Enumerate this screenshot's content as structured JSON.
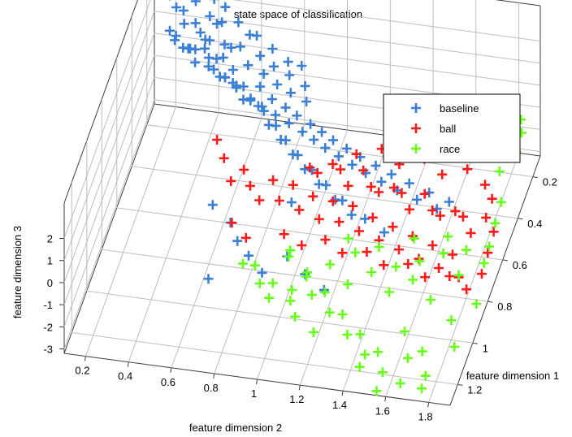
{
  "chart_data": {
    "type": "scatter",
    "projection": "3d",
    "title": "state space of classification",
    "xlabel": "feature dimension 2",
    "ylabel": "feature dimension 1",
    "zlabel": "feature dimension 3",
    "xticks": [
      "0.2",
      "0.4",
      "0.6",
      "0.8",
      "1",
      "1.2",
      "1.4",
      "1.6",
      "1.8"
    ],
    "yticks": [
      "0.2",
      "0.4",
      "0.6",
      "0.8",
      "1",
      "1.2"
    ],
    "zticks": [
      "2",
      "1",
      "0",
      "-1",
      "-2",
      "-3"
    ],
    "xlim": [
      0.1,
      1.9
    ],
    "ylim": [
      0.1,
      1.3
    ],
    "zlim": [
      -3.2,
      3.6
    ],
    "grid": true,
    "legend_position": "top-right",
    "marker": "+",
    "series": [
      {
        "name": "baseline",
        "color": "#3a7fd5",
        "points": [
          [
            0.27,
            0.14,
            3.5
          ],
          [
            0.48,
            0.24,
            3.0
          ],
          [
            0.4,
            0.16,
            2.5
          ],
          [
            0.18,
            0.12,
            2.0
          ],
          [
            0.22,
            0.15,
            1.8
          ],
          [
            0.25,
            0.14,
            1.6
          ],
          [
            0.3,
            0.12,
            1.9
          ],
          [
            0.32,
            0.18,
            1.5
          ],
          [
            0.35,
            0.2,
            1.3
          ],
          [
            0.38,
            0.16,
            1.7
          ],
          [
            0.4,
            0.22,
            1.2
          ],
          [
            0.42,
            0.18,
            1.6
          ],
          [
            0.45,
            0.2,
            1.9
          ],
          [
            0.48,
            0.25,
            1.4
          ],
          [
            0.5,
            0.22,
            1.0
          ],
          [
            0.52,
            0.18,
            1.8
          ],
          [
            0.55,
            0.24,
            1.3
          ],
          [
            0.58,
            0.2,
            1.5
          ],
          [
            0.6,
            0.28,
            0.9
          ],
          [
            0.62,
            0.22,
            1.7
          ],
          [
            0.65,
            0.26,
            1.2
          ],
          [
            0.68,
            0.3,
            0.8
          ],
          [
            0.7,
            0.24,
            1.4
          ],
          [
            0.72,
            0.28,
            1.0
          ],
          [
            0.75,
            0.32,
            0.6
          ],
          [
            0.78,
            0.26,
            1.1
          ],
          [
            0.8,
            0.3,
            0.9
          ],
          [
            0.82,
            0.34,
            0.5
          ],
          [
            0.85,
            0.28,
            1.2
          ],
          [
            0.88,
            0.32,
            0.7
          ],
          [
            0.9,
            0.36,
            0.4
          ],
          [
            0.2,
            0.18,
            1.0
          ],
          [
            0.23,
            0.2,
            0.8
          ],
          [
            0.26,
            0.16,
            1.2
          ],
          [
            0.3,
            0.22,
            0.7
          ],
          [
            0.34,
            0.24,
            0.9
          ],
          [
            0.37,
            0.2,
            0.6
          ],
          [
            0.41,
            0.26,
            0.8
          ],
          [
            0.44,
            0.28,
            0.5
          ],
          [
            0.47,
            0.24,
            0.7
          ],
          [
            0.5,
            0.3,
            0.4
          ],
          [
            0.53,
            0.28,
            0.6
          ],
          [
            0.56,
            0.32,
            0.3
          ],
          [
            0.6,
            0.34,
            0.5
          ],
          [
            0.64,
            0.36,
            0.2
          ],
          [
            0.67,
            0.32,
            0.4
          ],
          [
            0.7,
            0.38,
            0.1
          ],
          [
            0.74,
            0.36,
            0.3
          ],
          [
            0.77,
            0.4,
            0.0
          ],
          [
            0.81,
            0.38,
            0.2
          ],
          [
            0.84,
            0.42,
            -0.1
          ],
          [
            0.87,
            0.4,
            0.1
          ],
          [
            0.91,
            0.44,
            -0.2
          ],
          [
            0.94,
            0.42,
            0.0
          ],
          [
            0.97,
            0.46,
            -0.3
          ],
          [
            1.0,
            0.44,
            -0.1
          ],
          [
            1.03,
            0.48,
            -0.4
          ],
          [
            1.06,
            0.46,
            -0.2
          ],
          [
            1.1,
            0.5,
            -0.5
          ],
          [
            1.13,
            0.48,
            -0.3
          ],
          [
            1.17,
            0.52,
            -0.6
          ],
          [
            1.2,
            0.5,
            -0.4
          ],
          [
            1.24,
            0.54,
            -0.7
          ],
          [
            1.28,
            0.52,
            -0.5
          ],
          [
            1.32,
            0.56,
            -0.8
          ],
          [
            1.36,
            0.54,
            -0.6
          ],
          [
            1.4,
            0.58,
            -0.9
          ],
          [
            1.45,
            0.56,
            -0.7
          ],
          [
            1.5,
            0.6,
            -1.0
          ],
          [
            1.55,
            0.58,
            -0.8
          ],
          [
            1.6,
            0.62,
            -1.1
          ],
          [
            1.65,
            0.6,
            -0.9
          ],
          [
            0.25,
            0.24,
            1.4
          ],
          [
            0.29,
            0.26,
            1.1
          ],
          [
            0.33,
            0.28,
            1.3
          ],
          [
            0.36,
            0.3,
            0.9
          ],
          [
            0.39,
            0.25,
            1.5
          ],
          [
            0.43,
            0.32,
            1.0
          ],
          [
            0.46,
            0.3,
            1.2
          ],
          [
            0.49,
            0.34,
            0.8
          ],
          [
            0.52,
            0.36,
            1.0
          ],
          [
            0.55,
            0.34,
            0.6
          ],
          [
            0.58,
            0.38,
            0.8
          ],
          [
            0.62,
            0.4,
            0.5
          ],
          [
            0.66,
            0.42,
            0.7
          ],
          [
            0.69,
            0.4,
            0.3
          ],
          [
            0.73,
            0.44,
            0.5
          ],
          [
            0.76,
            0.46,
            0.1
          ],
          [
            0.8,
            0.48,
            0.3
          ],
          [
            0.83,
            0.5,
            -0.1
          ],
          [
            0.86,
            0.52,
            0.1
          ],
          [
            0.9,
            0.54,
            -0.3
          ],
          [
            0.93,
            0.56,
            -0.1
          ],
          [
            0.97,
            0.58,
            -0.5
          ],
          [
            1.01,
            0.6,
            -0.3
          ],
          [
            1.05,
            0.62,
            -0.7
          ],
          [
            1.09,
            0.64,
            -0.5
          ],
          [
            1.14,
            0.66,
            -0.9
          ],
          [
            1.18,
            0.68,
            -0.7
          ],
          [
            1.23,
            0.7,
            -1.1
          ],
          [
            0.7,
            0.8,
            -1.2
          ],
          [
            0.75,
            0.85,
            -1.5
          ],
          [
            0.82,
            0.9,
            -1.6
          ],
          [
            0.6,
            0.75,
            -1.0
          ],
          [
            0.65,
            0.95,
            -2.4
          ],
          [
            0.9,
            0.95,
            -1.8
          ],
          [
            1.0,
            0.9,
            -1.4
          ],
          [
            1.1,
            0.95,
            -1.6
          ],
          [
            1.2,
            0.98,
            -1.9
          ],
          [
            0.95,
            0.7,
            -0.9
          ],
          [
            1.3,
            0.72,
            -1.0
          ],
          [
            1.4,
            0.75,
            -1.2
          ]
        ]
      },
      {
        "name": "ball",
        "color": "#ff1a1a",
        "points": [
          [
            0.55,
            0.55,
            0.0
          ],
          [
            0.6,
            0.6,
            -0.3
          ],
          [
            0.65,
            0.65,
            -0.8
          ],
          [
            0.7,
            0.62,
            -0.5
          ],
          [
            0.75,
            0.68,
            -0.6
          ],
          [
            0.8,
            0.7,
            -1.0
          ],
          [
            0.85,
            0.66,
            -0.4
          ],
          [
            0.9,
            0.72,
            -0.7
          ],
          [
            0.95,
            0.68,
            -0.3
          ],
          [
            1.0,
            0.74,
            -0.8
          ],
          [
            1.05,
            0.7,
            -0.5
          ],
          [
            1.1,
            0.76,
            -0.9
          ],
          [
            1.15,
            0.72,
            -0.4
          ],
          [
            1.2,
            0.78,
            -0.7
          ],
          [
            1.25,
            0.74,
            -0.3
          ],
          [
            1.3,
            0.8,
            -0.8
          ],
          [
            1.35,
            0.76,
            -0.5
          ],
          [
            1.4,
            0.82,
            -0.9
          ],
          [
            1.45,
            0.78,
            -0.6
          ],
          [
            1.5,
            0.84,
            -1.0
          ],
          [
            1.55,
            0.8,
            -0.7
          ],
          [
            1.6,
            0.86,
            -1.1
          ],
          [
            1.65,
            0.82,
            -0.8
          ],
          [
            1.7,
            0.88,
            -1.2
          ],
          [
            1.75,
            0.84,
            -0.9
          ],
          [
            1.8,
            0.9,
            -1.3
          ],
          [
            1.0,
            0.6,
            -0.2
          ],
          [
            1.05,
            0.64,
            0.0
          ],
          [
            1.1,
            0.58,
            -0.1
          ],
          [
            1.15,
            0.62,
            0.1
          ],
          [
            1.2,
            0.66,
            -0.2
          ],
          [
            1.25,
            0.6,
            0.0
          ],
          [
            1.3,
            0.64,
            -0.3
          ],
          [
            1.35,
            0.68,
            -0.1
          ],
          [
            1.4,
            0.62,
            -0.4
          ],
          [
            1.45,
            0.66,
            -0.2
          ],
          [
            1.5,
            0.7,
            -0.5
          ],
          [
            1.55,
            0.64,
            -0.3
          ],
          [
            1.6,
            0.68,
            -0.6
          ],
          [
            1.65,
            0.72,
            -0.4
          ],
          [
            1.7,
            0.66,
            -0.7
          ],
          [
            1.75,
            0.7,
            -0.5
          ],
          [
            1.8,
            0.74,
            -0.8
          ],
          [
            1.85,
            0.68,
            -0.6
          ],
          [
            1.2,
            0.55,
            0.2
          ],
          [
            1.3,
            0.5,
            0.1
          ],
          [
            1.4,
            0.55,
            0.0
          ],
          [
            1.5,
            0.5,
            -0.1
          ],
          [
            1.6,
            0.55,
            -0.2
          ],
          [
            1.7,
            0.5,
            -0.3
          ],
          [
            1.8,
            0.55,
            -0.4
          ],
          [
            1.85,
            0.6,
            -0.5
          ],
          [
            0.95,
            0.8,
            -1.4
          ],
          [
            1.05,
            0.85,
            -1.3
          ],
          [
            1.15,
            0.82,
            -1.2
          ],
          [
            1.25,
            0.88,
            -1.1
          ],
          [
            1.35,
            0.84,
            -1.3
          ],
          [
            1.45,
            0.9,
            -1.2
          ],
          [
            1.55,
            0.86,
            -1.4
          ],
          [
            1.65,
            0.92,
            -1.3
          ],
          [
            1.75,
            0.88,
            -1.5
          ],
          [
            1.85,
            0.94,
            -1.4
          ],
          [
            1.9,
            0.88,
            -1.2
          ],
          [
            1.9,
            0.8,
            -1.0
          ],
          [
            1.9,
            0.72,
            -0.8
          ],
          [
            0.7,
            0.78,
            -1.4
          ],
          [
            0.78,
            0.82,
            -1.6
          ]
        ]
      },
      {
        "name": "race",
        "color": "#66ff1a",
        "points": [
          [
            0.85,
            0.9,
            -2.0
          ],
          [
            0.95,
            0.95,
            -2.2
          ],
          [
            1.05,
            1.0,
            -2.4
          ],
          [
            1.1,
            0.92,
            -1.8
          ],
          [
            1.2,
            0.97,
            -2.1
          ],
          [
            1.3,
            1.02,
            -2.5
          ],
          [
            1.4,
            1.07,
            -2.8
          ],
          [
            1.5,
            1.12,
            -3.0
          ],
          [
            1.6,
            1.05,
            -2.6
          ],
          [
            1.7,
            1.1,
            -2.9
          ],
          [
            1.8,
            1.0,
            -2.3
          ],
          [
            1.9,
            0.95,
            -1.9
          ],
          [
            1.0,
            0.88,
            -1.6
          ],
          [
            1.1,
            0.93,
            -1.9
          ],
          [
            1.2,
            0.9,
            -1.5
          ],
          [
            1.3,
            0.95,
            -1.8
          ],
          [
            1.4,
            0.92,
            -1.4
          ],
          [
            1.5,
            0.97,
            -1.7
          ],
          [
            1.6,
            0.94,
            -1.3
          ],
          [
            1.7,
            0.99,
            -1.6
          ],
          [
            1.8,
            0.9,
            -1.2
          ],
          [
            1.9,
            0.85,
            -1.0
          ],
          [
            1.35,
            1.1,
            -2.6
          ],
          [
            1.45,
            1.15,
            -2.9
          ],
          [
            1.55,
            1.2,
            -3.1
          ],
          [
            1.65,
            1.15,
            -2.8
          ],
          [
            1.75,
            1.2,
            -3.0
          ],
          [
            1.85,
            1.1,
            -2.5
          ],
          [
            1.25,
            1.05,
            -2.2
          ],
          [
            1.15,
            1.0,
            -2.0
          ],
          [
            1.05,
            0.98,
            -2.1
          ],
          [
            0.95,
            1.0,
            -2.4
          ],
          [
            1.3,
            0.85,
            -1.3
          ],
          [
            1.4,
            0.82,
            -1.2
          ],
          [
            1.5,
            0.88,
            -1.4
          ],
          [
            1.6,
            0.85,
            -1.3
          ],
          [
            1.7,
            0.82,
            -1.1
          ],
          [
            1.8,
            0.8,
            -1.0
          ],
          [
            1.9,
            0.78,
            -0.9
          ],
          [
            1.9,
            0.7,
            -0.6
          ],
          [
            1.9,
            0.62,
            -0.4
          ],
          [
            1.85,
            0.5,
            -0.2
          ],
          [
            1.9,
            0.42,
            0.0
          ],
          [
            1.9,
            0.35,
            0.2
          ],
          [
            1.88,
            0.3,
            0.3
          ],
          [
            1.75,
            1.25,
            -3.1
          ],
          [
            1.65,
            1.25,
            -3.0
          ],
          [
            1.55,
            1.28,
            -3.2
          ],
          [
            1.45,
            1.22,
            -2.8
          ],
          [
            1.2,
            1.12,
            -2.5
          ],
          [
            1.1,
            1.08,
            -2.3
          ],
          [
            0.9,
            0.98,
            -2.0
          ],
          [
            0.8,
            0.92,
            -1.8
          ],
          [
            1.0,
            0.86,
            -1.5
          ],
          [
            1.25,
            0.8,
            -1.2
          ],
          [
            1.55,
            0.78,
            -1.0
          ],
          [
            1.7,
            0.76,
            -0.9
          ]
        ]
      }
    ]
  }
}
